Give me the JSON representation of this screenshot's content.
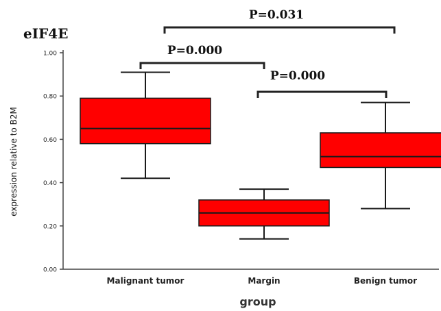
{
  "chart_data": {
    "type": "box",
    "title": "eIF4E",
    "xlabel": "group",
    "ylabel": "expression relative to B2M",
    "ylim": [
      0,
      1.0
    ],
    "yticks": [
      "0.00",
      "0.20",
      "0.40",
      "0.60",
      "0.80",
      "1.00"
    ],
    "categories": [
      "Malignant tumor",
      "Margin",
      "Benign tumor"
    ],
    "boxes": [
      {
        "category": "Malignant tumor",
        "min": 0.42,
        "q1": 0.58,
        "median": 0.65,
        "q3": 0.79,
        "max": 0.91
      },
      {
        "category": "Margin",
        "min": 0.14,
        "q1": 0.2,
        "median": 0.26,
        "q3": 0.32,
        "max": 0.37
      },
      {
        "category": "Benign tumor",
        "min": 0.28,
        "q1": 0.47,
        "median": 0.52,
        "q3": 0.63,
        "max": 0.77
      }
    ],
    "comparisons": [
      {
        "from": 0,
        "to": 2,
        "label": "P=0.031",
        "level": 1.12
      },
      {
        "from": 0,
        "to": 1,
        "label": "P=0.000",
        "level": 0.96
      },
      {
        "from": 1,
        "to": 2,
        "label": "P=0.000",
        "level": 0.81
      }
    ],
    "colors": {
      "box_fill": "#ff0000",
      "box_edge": "#1a1a1a",
      "axis": "#444444",
      "bracket": "#222222"
    },
    "grid": false
  }
}
